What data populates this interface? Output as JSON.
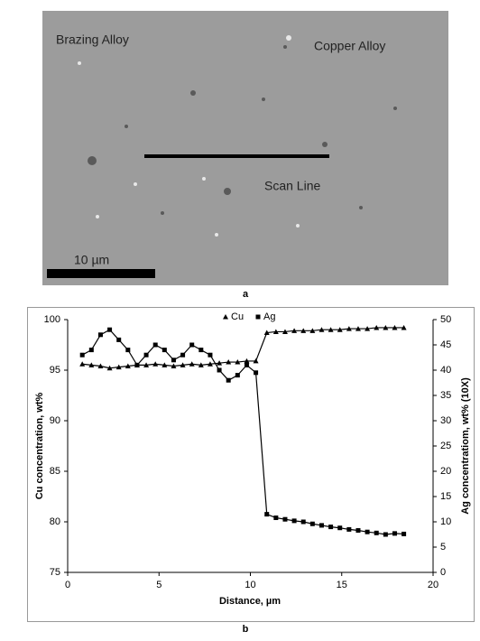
{
  "figure_a": {
    "labels": [
      "Brazing Alloy",
      "Copper Alloy",
      "Scan Line"
    ],
    "scale_bar": "10 µm",
    "caption": "a"
  },
  "chart_data": {
    "type": "line",
    "caption": "b",
    "x_label": "Distance, µm",
    "y_label": "Cu concentration, wt%",
    "y2_label": "Ag concentratiom, wt% (10X)",
    "legend": "top",
    "xlim": [
      0,
      20
    ],
    "xticks": [
      0,
      5,
      10,
      15,
      20
    ],
    "ylim": [
      75,
      100
    ],
    "yticks": [
      75,
      80,
      85,
      90,
      95,
      100
    ],
    "y2lim": [
      0,
      50
    ],
    "y2ticks": [
      0,
      5,
      10,
      15,
      20,
      25,
      30,
      35,
      40,
      45,
      50
    ],
    "series": [
      {
        "name": "Cu",
        "color": "#000000",
        "marker": "triangle",
        "x": [
          0.8,
          1.3,
          1.8,
          2.3,
          2.8,
          3.3,
          3.8,
          4.3,
          4.8,
          5.3,
          5.8,
          6.3,
          6.8,
          7.3,
          7.8,
          8.3,
          8.8,
          9.3,
          9.8,
          10.3,
          10.9,
          11.4,
          11.9,
          12.4,
          12.9,
          13.4,
          13.9,
          14.4,
          14.9,
          15.4,
          15.9,
          16.4,
          16.9,
          17.4,
          17.9,
          18.4
        ],
        "values": [
          95.6,
          95.5,
          95.4,
          95.2,
          95.3,
          95.4,
          95.5,
          95.5,
          95.6,
          95.5,
          95.4,
          95.5,
          95.6,
          95.5,
          95.6,
          95.7,
          95.8,
          95.8,
          95.9,
          95.9,
          98.7,
          98.8,
          98.8,
          98.9,
          98.9,
          98.9,
          99.0,
          99.0,
          99.0,
          99.1,
          99.1,
          99.1,
          99.2,
          99.2,
          99.2,
          99.2
        ]
      },
      {
        "name": "Ag",
        "color": "#000000",
        "marker": "square",
        "axis": "y2",
        "x": [
          0.8,
          1.3,
          1.8,
          2.3,
          2.8,
          3.3,
          3.8,
          4.3,
          4.8,
          5.3,
          5.8,
          6.3,
          6.8,
          7.3,
          7.8,
          8.3,
          8.8,
          9.3,
          9.8,
          10.3,
          10.9,
          11.4,
          11.9,
          12.4,
          12.9,
          13.4,
          13.9,
          14.4,
          14.9,
          15.4,
          15.9,
          16.4,
          16.9,
          17.4,
          17.9,
          18.4
        ],
        "values": [
          43,
          44,
          47,
          48,
          46,
          44,
          41,
          43,
          45,
          44,
          42,
          43,
          45,
          44,
          43,
          40,
          38,
          39,
          41,
          39.5,
          11.5,
          10.8,
          10.5,
          10.2,
          10.0,
          9.6,
          9.3,
          9.0,
          8.8,
          8.5,
          8.3,
          8.0,
          7.8,
          7.5,
          7.7,
          7.6
        ]
      }
    ]
  }
}
